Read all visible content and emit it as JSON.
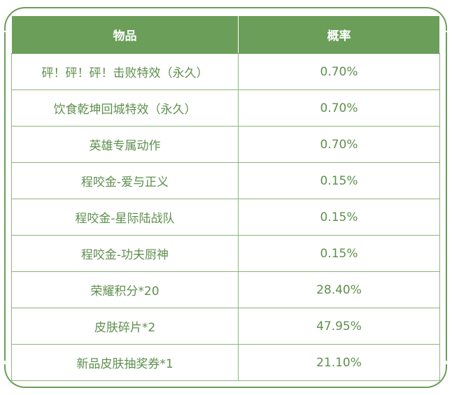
{
  "table": {
    "headers": [
      "物品",
      "概率"
    ],
    "rows": [
      {
        "item": "砰！砰！砰！击败特效（永久）",
        "prob": "0.70%"
      },
      {
        "item": "饮食乾坤回城特效（永久）",
        "prob": "0.70%"
      },
      {
        "item": "英雄专属动作",
        "prob": "0.70%"
      },
      {
        "item": "程咬金-爱与正义",
        "prob": "0.15%"
      },
      {
        "item": "程咬金-星际陆战队",
        "prob": "0.15%"
      },
      {
        "item": "程咬金-功夫厨神",
        "prob": "0.15%"
      },
      {
        "item": "荣耀积分*20",
        "prob": "28.40%"
      },
      {
        "item": "皮肤碎片*2",
        "prob": "47.95%"
      },
      {
        "item": "新品皮肤抽奖券*1",
        "prob": "21.10%"
      }
    ]
  },
  "colors": {
    "header_bg": "#6a9e59",
    "text": "#5e8f4d",
    "border": "#8ab67b"
  }
}
